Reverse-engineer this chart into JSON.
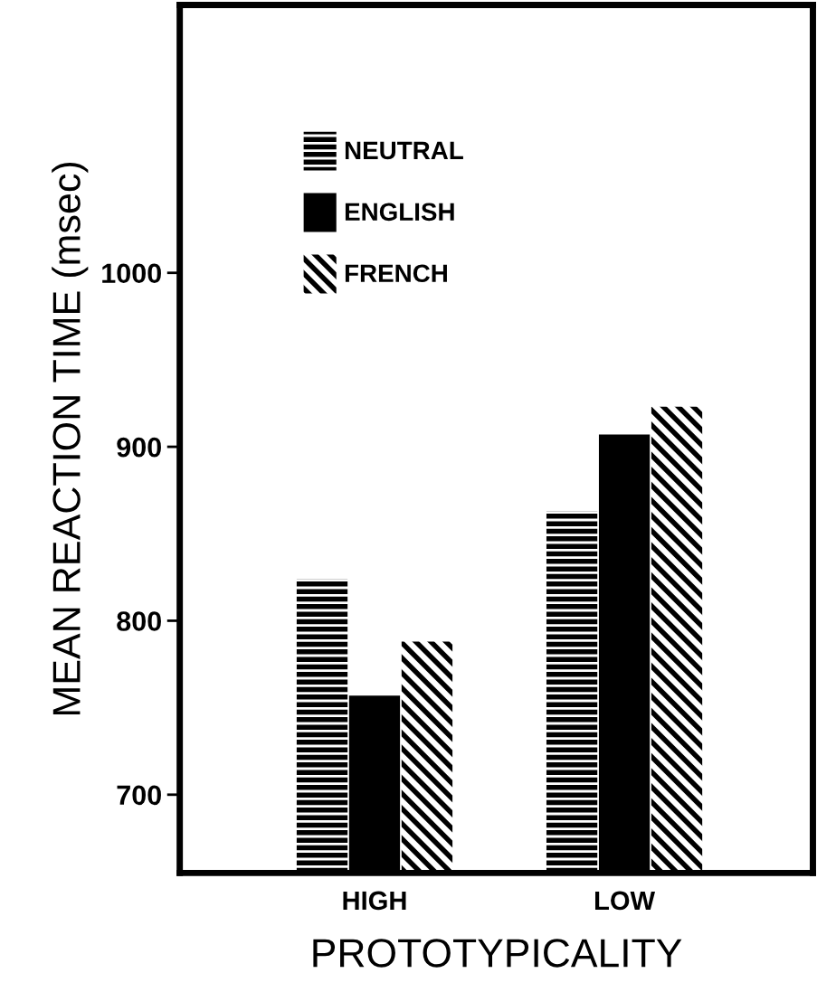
{
  "chart_data": {
    "type": "bar",
    "xlabel": "PROTOTYPICALITY",
    "ylabel": "MEAN REACTION TIME (msec)",
    "categories": [
      "HIGH",
      "LOW"
    ],
    "series": [
      {
        "name": "NEUTRAL",
        "color": "#000000",
        "values": [
          824,
          863
        ]
      },
      {
        "name": "ENGLISH",
        "color": "#000000",
        "values": [
          757,
          907
        ]
      },
      {
        "name": "FRENCH",
        "color": "#000000",
        "values": [
          788,
          923
        ]
      }
    ],
    "ylim": [
      655,
      1154
    ],
    "yticks": [
      700,
      800,
      900,
      1000
    ],
    "grid": false,
    "legend": "top left"
  }
}
